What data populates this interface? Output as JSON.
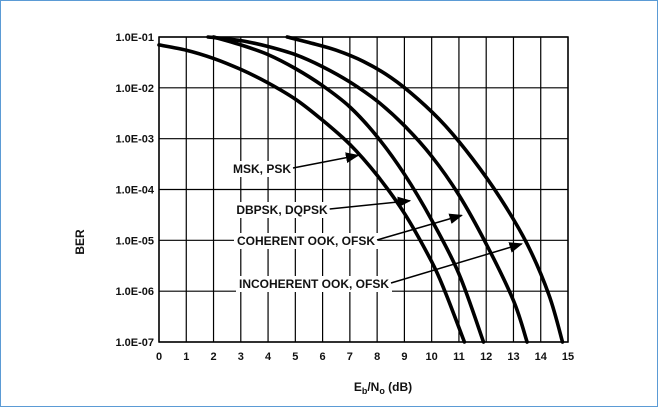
{
  "chart_data": {
    "type": "line",
    "title": "",
    "xlabel": {
      "main": "E",
      "sub1": "b",
      "mid": "/N",
      "sub2": "o",
      "end": " (dB)"
    },
    "ylabel": "BER",
    "yscale": "log",
    "xlim": [
      0,
      15
    ],
    "ylim": [
      1e-07,
      0.1
    ],
    "grid": true,
    "x_ticks": [
      "0",
      "1",
      "2",
      "3",
      "4",
      "5",
      "6",
      "7",
      "8",
      "9",
      "10",
      "11",
      "12",
      "13",
      "14",
      "15"
    ],
    "y_ticks": [
      "1.0E-01",
      "1.0E-02",
      "1.0E-03",
      "1.0E-04",
      "1.0E-05",
      "1.0E-06",
      "1.0E-07"
    ],
    "colors": {
      "line": "#000000",
      "grid": "#000000",
      "frame": "#5b9bd5"
    },
    "series": [
      {
        "name": "MSK, PSK",
        "points": [
          [
            0,
            0.07
          ],
          [
            1,
            0.055
          ],
          [
            2,
            0.038
          ],
          [
            3,
            0.023
          ],
          [
            4,
            0.0125
          ],
          [
            5,
            0.006
          ],
          [
            6,
            0.0023
          ],
          [
            7,
            0.00077
          ],
          [
            8,
            0.00019
          ],
          [
            9,
            3.4e-05
          ],
          [
            10,
            3.8e-06
          ],
          [
            10.5,
            9.5e-07
          ],
          [
            11.2,
            1e-07
          ]
        ]
      },
      {
        "name": "DBPSK, DQPSK",
        "points": [
          [
            2,
            0.1
          ],
          [
            3,
            0.07
          ],
          [
            4,
            0.045
          ],
          [
            5,
            0.024
          ],
          [
            6,
            0.011
          ],
          [
            7,
            0.0042
          ],
          [
            8,
            0.0011
          ],
          [
            9,
            0.0002
          ],
          [
            10,
            2.5e-05
          ],
          [
            11,
            2.2e-06
          ],
          [
            11.9,
            1e-07
          ]
        ]
      },
      {
        "name": "COHERENT OOK, OFSK",
        "points": [
          [
            1.8,
            0.1
          ],
          [
            3,
            0.085
          ],
          [
            4,
            0.065
          ],
          [
            5,
            0.045
          ],
          [
            6,
            0.026
          ],
          [
            7,
            0.013
          ],
          [
            8,
            0.0055
          ],
          [
            9,
            0.0018
          ],
          [
            10,
            0.00045
          ],
          [
            11,
            7.8e-05
          ],
          [
            12,
            8.5e-06
          ],
          [
            13,
            6.5e-07
          ],
          [
            13.5,
            1e-07
          ]
        ]
      },
      {
        "name": "INCOHERENT OOK, OFSK",
        "points": [
          [
            4.7,
            0.1
          ],
          [
            5.5,
            0.078
          ],
          [
            6.5,
            0.055
          ],
          [
            7.5,
            0.033
          ],
          [
            8.5,
            0.016
          ],
          [
            9.5,
            0.006
          ],
          [
            10.5,
            0.0018
          ],
          [
            11.5,
            0.0004
          ],
          [
            12.5,
            7e-05
          ],
          [
            13.5,
            8.5e-06
          ],
          [
            14.3,
            8.5e-07
          ],
          [
            14.8,
            1e-07
          ]
        ]
      }
    ],
    "annotations": [
      {
        "text": "MSK, PSK",
        "target_series": 0,
        "target": [
          7.3,
          0.00047
        ]
      },
      {
        "text": "DBPSK, DQPSK",
        "target_series": 1,
        "target": [
          9.2,
          6e-05
        ]
      },
      {
        "text": "COHERENT OOK, OFSK",
        "target_series": 2,
        "target": [
          11.1,
          3.1e-05
        ]
      },
      {
        "text": "INCOHERENT OOK, OFSK",
        "target_series": 3,
        "target": [
          13.3,
          8.5e-06
        ]
      }
    ]
  }
}
